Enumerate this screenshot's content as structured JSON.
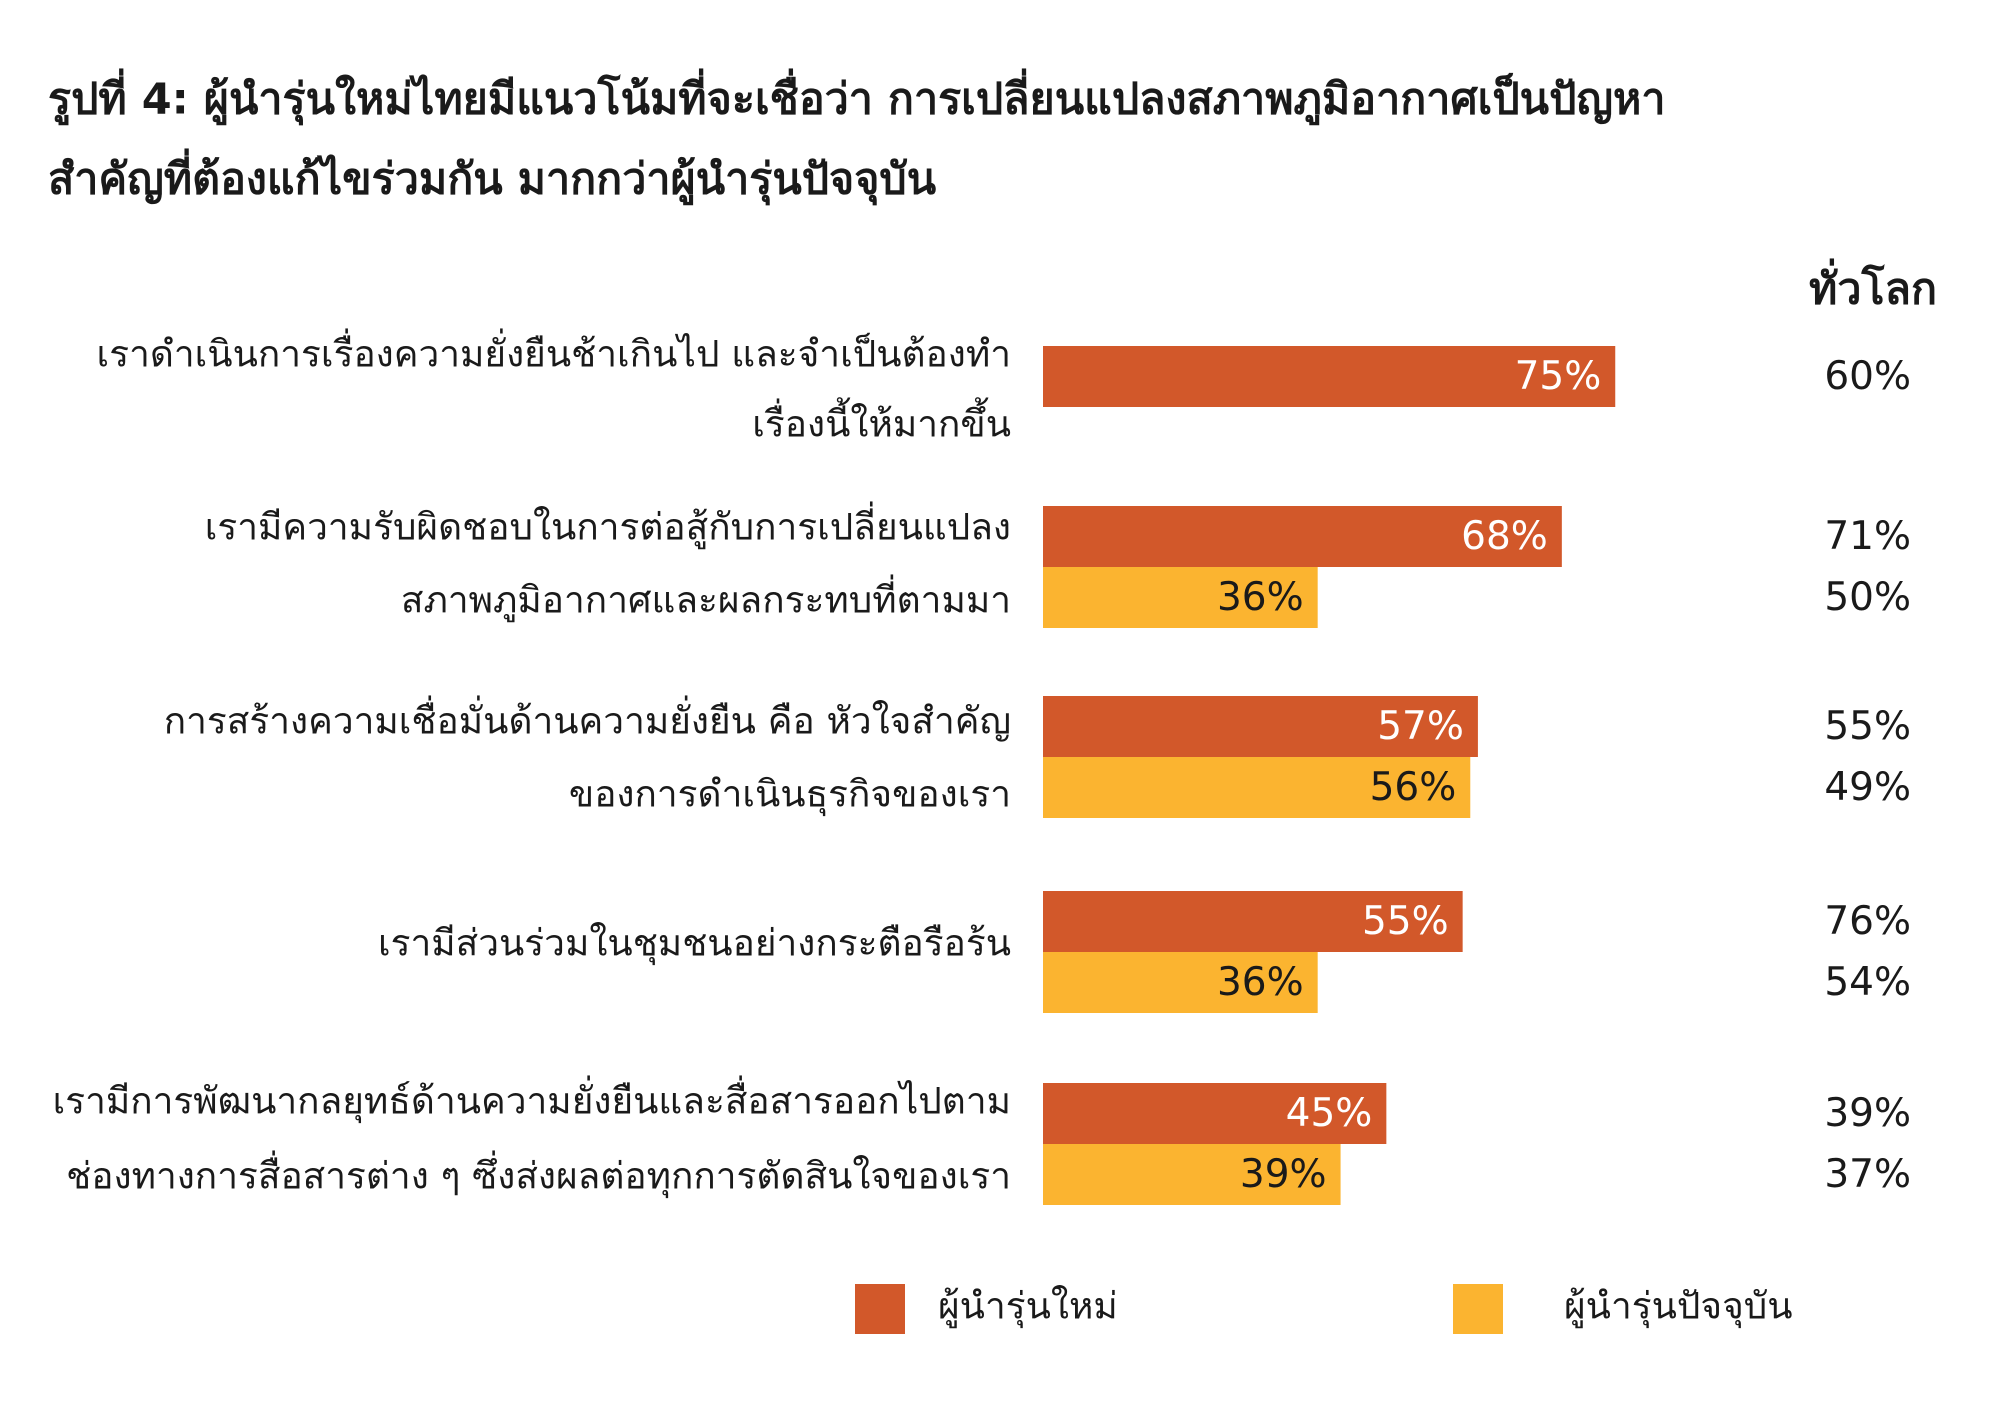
{
  "chart_data": {
    "type": "bar",
    "orientation": "horizontal",
    "title": [
      "รูปที่ 4: ผู้นำรุ่นใหม่ไทยมีแนวโน้มที่จะเชื่อว่า การเปลี่ยนแปลงสภาพภูมิอากาศเป็นปัญหา",
      "สำคัญที่ต้องแก้ไขร่วมกัน มากกว่าผู้นำรุ่นปัจจุบัน"
    ],
    "categories": [
      [
        "เราดำเนินการเรื่องความยั่งยืนช้าเกินไป และจำเป็นต้องทำ",
        "เรื่องนี้ให้มากขึ้น"
      ],
      [
        "เรามีความรับผิดชอบในการต่อสู้กับการเปลี่ยนแปลง",
        "สภาพภูมิอากาศและผลกระทบที่ตามมา"
      ],
      [
        "การสร้างความเชื่อมั่นด้านความยั่งยืน คือ หัวใจสำคัญ",
        "ของการดำเนินธุรกิจของเรา"
      ],
      [
        "เรามีส่วนร่วมในชุมชนอย่างกระตือรือร้น"
      ],
      [
        "เรามีการพัฒนากลยุทธ์ด้านความยั่งยืนและสื่อสารออกไปตาม",
        "ช่องทางการสื่อสารต่าง ๆ ซึ่งส่งผลต่อทุกการตัดสินใจของเรา"
      ]
    ],
    "series": [
      {
        "name": "ผู้นำรุ่นใหม่",
        "color": "#d2582a",
        "label_color": "#ffffff",
        "values": [
          75,
          68,
          57,
          55,
          45
        ],
        "value_labels": [
          "75%",
          "68%",
          "57%",
          "55%",
          "45%"
        ],
        "global_values": [
          60,
          71,
          55,
          76,
          39
        ],
        "global_value_labels": [
          "60%",
          "71%",
          "55%",
          "76%",
          "39%"
        ]
      },
      {
        "name": "ผู้นำรุ่นปัจจุบัน",
        "color": "#fbb430",
        "label_color": "#1a1a1a",
        "values": [
          null,
          36,
          56,
          36,
          39
        ],
        "value_labels": [
          null,
          "36%",
          "56%",
          "36%",
          "39%"
        ],
        "global_values": [
          null,
          50,
          49,
          54,
          37
        ],
        "global_value_labels": [
          null,
          "50%",
          "49%",
          "54%",
          "37%"
        ]
      }
    ],
    "global_header": "ทั่วโลก",
    "xlim": [
      0,
      100
    ]
  }
}
